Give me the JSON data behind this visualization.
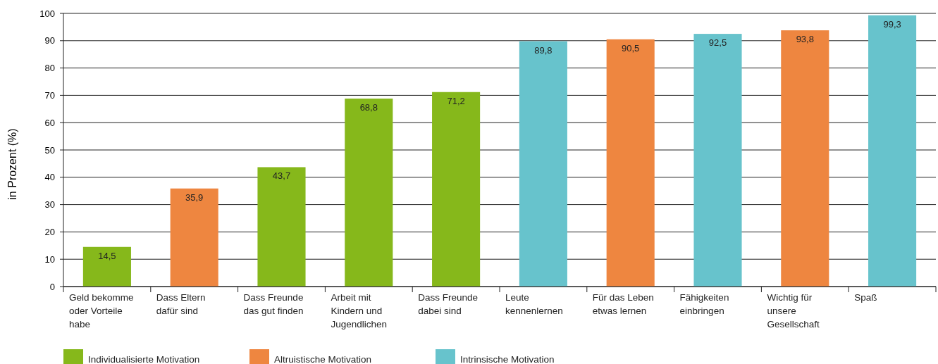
{
  "chart_data": {
    "type": "bar",
    "ylabel": "in Prozent (%)",
    "categories": [
      "Geld bekomme oder Vorteile habe",
      "Dass Eltern dafür sind",
      "Dass Freunde das gut finden",
      "Arbeit mit Kindern und Jugendlichen",
      "Dass Freunde dabei sind",
      "Leute kennenlernen",
      "Für das Leben etwas lernen",
      "Fähigkeiten einbringen",
      "Wichtig für unsere Gesellschaft",
      "Spaß"
    ],
    "series": [
      {
        "name": "Individualisierte Motivation",
        "color": "#86b81b",
        "values": [
          14.5,
          null,
          43.7,
          68.8,
          71.2,
          null,
          null,
          null,
          null,
          null
        ],
        "value_labels": [
          "14,5",
          null,
          "43,7",
          "68,8",
          "71,2",
          null,
          null,
          null,
          null,
          null
        ]
      },
      {
        "name": "Altruistische Motivation",
        "color": "#ee8640",
        "values": [
          null,
          35.9,
          null,
          null,
          null,
          null,
          90.5,
          null,
          93.8,
          null
        ],
        "value_labels": [
          null,
          "35,9",
          null,
          null,
          null,
          null,
          "90,5",
          null,
          "93,8",
          null
        ]
      },
      {
        "name": "Intrinsische Motivation",
        "color": "#67c3cc",
        "values": [
          null,
          null,
          null,
          null,
          null,
          89.8,
          null,
          92.5,
          null,
          99.3
        ],
        "value_labels": [
          null,
          null,
          null,
          null,
          null,
          "89,8",
          null,
          "92,5",
          null,
          "99,3"
        ]
      }
    ],
    "ylim": [
      0,
      100
    ],
    "yticks": [
      0,
      10,
      20,
      30,
      40,
      50,
      60,
      70,
      80,
      90,
      100
    ],
    "grid": "y",
    "legend": "bottom left"
  }
}
